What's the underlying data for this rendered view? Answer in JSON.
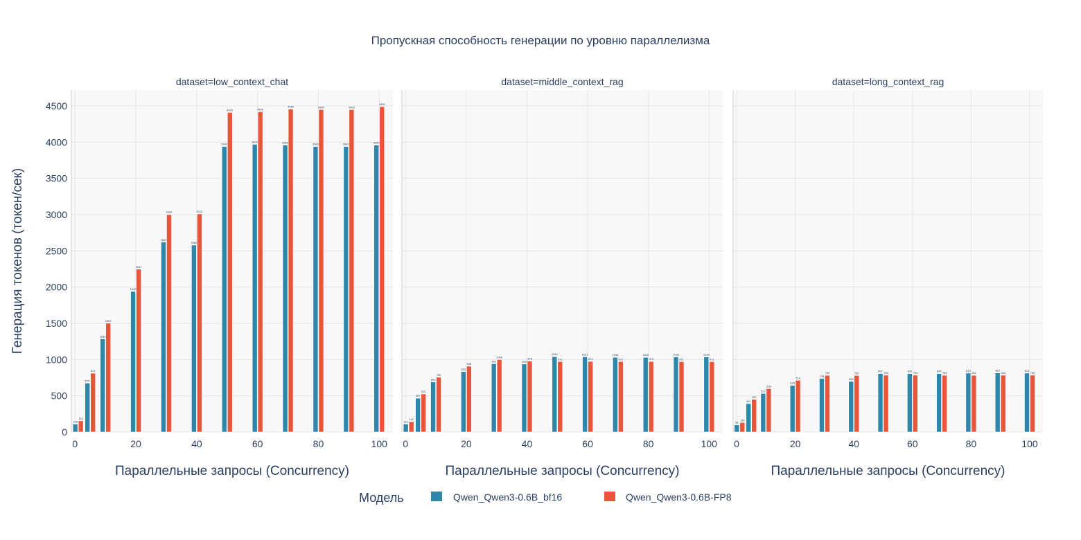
{
  "chart_data": {
    "type": "bar",
    "title": "Пропускная способность генерации по уровню параллелизма",
    "ylabel": "Генерация токенов (токен/сек)",
    "xlabel": "Параллельные запросы (Concurrency)",
    "ylim": [
      0,
      4720
    ],
    "xlim": [
      -1.2,
      104.5
    ],
    "yticks": [
      0,
      500,
      1000,
      1500,
      2000,
      2500,
      3000,
      3500,
      4000,
      4500
    ],
    "xticks": [
      0,
      20,
      40,
      60,
      80,
      100
    ],
    "grid": true,
    "legend": {
      "title": "Модель",
      "placement": "bottom"
    },
    "x": [
      1,
      5,
      10,
      20,
      30,
      40,
      50,
      60,
      70,
      80,
      90,
      100
    ],
    "series_meta": [
      {
        "name": "Qwen_Qwen3-0.6B_bf16",
        "color": "#2e86ab"
      },
      {
        "name": "Qwen_Qwen3-0.6B-FP8",
        "color": "#e8553a"
      }
    ],
    "panels": [
      {
        "title": "dataset=low_context_chat",
        "series": [
          {
            "name": "Qwen_Qwen3-0.6B_bf16",
            "values": [
              108,
              675,
              1285,
              1940,
              2620,
              2580,
              3940,
              3970,
              3960,
              3940,
              3940,
              3960
            ]
          },
          {
            "name": "Qwen_Qwen3-0.6B-FP8",
            "values": [
              154,
              811,
              1502,
              2247,
              3000,
              3010,
              4410,
              4420,
              4456,
              4450,
              4450,
              4490
            ]
          }
        ]
      },
      {
        "title": "dataset=middle_context_rag",
        "series": [
          {
            "name": "Qwen_Qwen3-0.6B_bf16",
            "values": [
              110,
              467,
              690,
              833,
              942,
              938,
              1040,
              1037,
              1030,
              1030,
              1036,
              1036
            ]
          },
          {
            "name": "Qwen_Qwen3-0.6B-FP8",
            "values": [
              142,
              526,
              756,
              908,
              1000,
              978,
              972,
              974,
              972,
              973,
              971,
              971
            ]
          }
        ]
      },
      {
        "title": "dataset=long_context_rag",
        "series": [
          {
            "name": "Qwen_Qwen3-0.6B_bf16",
            "values": [
              98,
              391,
              532,
              643,
              738,
              698,
              807,
              806,
              806,
              813,
              815,
              813
            ]
          },
          {
            "name": "Qwen_Qwen3-0.6B-FP8",
            "values": [
              130,
              450,
              598,
              714,
              782,
              780,
              784,
              784,
              783,
              782,
              784,
              784
            ]
          }
        ]
      }
    ]
  }
}
